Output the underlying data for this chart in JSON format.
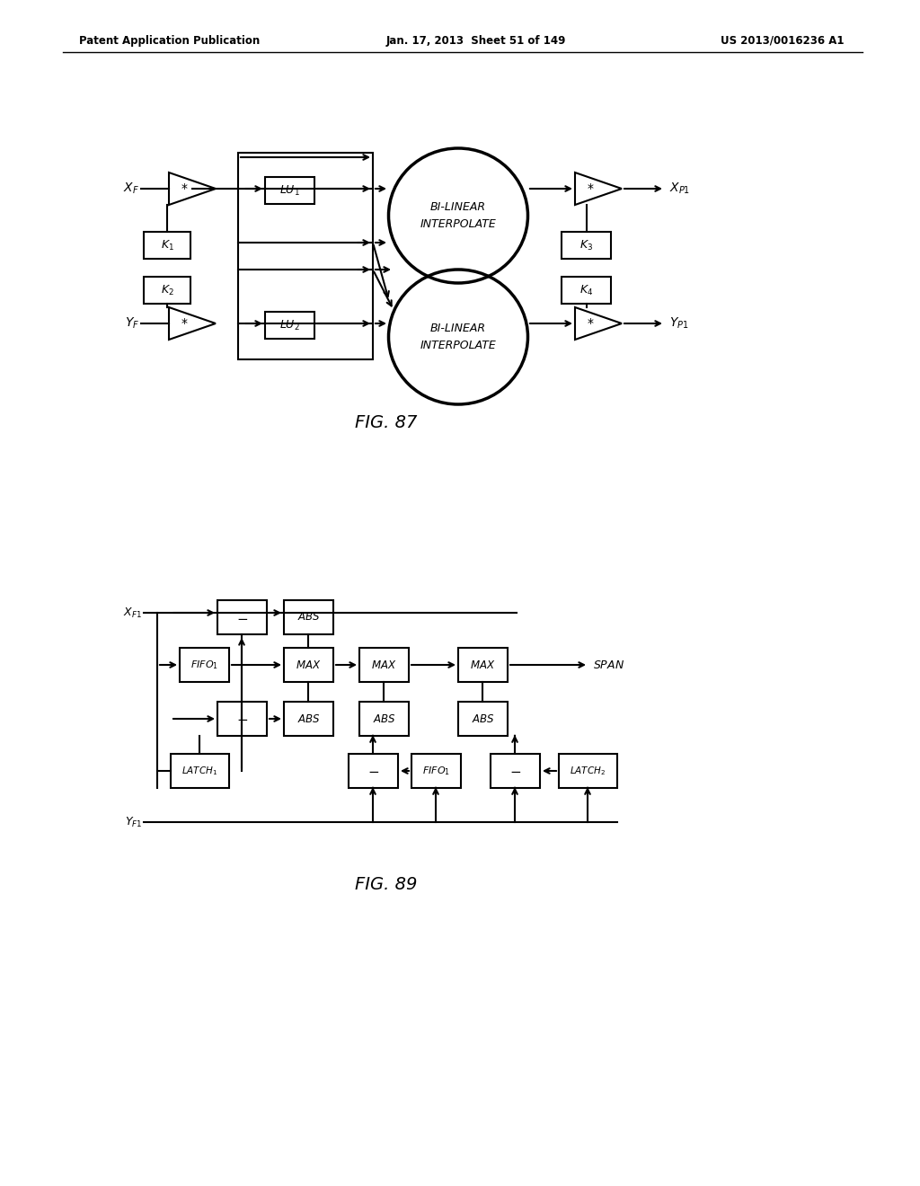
{
  "header_left": "Patent Application Publication",
  "header_mid": "Jan. 17, 2013  Sheet 51 of 149",
  "header_right": "US 2013/0016236 A1",
  "fig87_label": "FIG. 87",
  "fig89_label": "FIG. 89",
  "bg_color": "#ffffff",
  "line_color": "#000000",
  "box_color": "#ffffff",
  "text_color": "#000000"
}
